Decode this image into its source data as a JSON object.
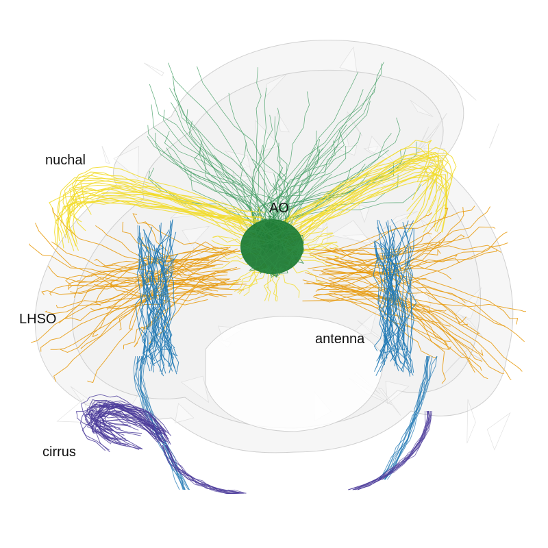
{
  "labels": {
    "nuchal": "nuchal",
    "ao": "AO",
    "lhso": "LHSO",
    "antenna": "antenna",
    "cirrus": "cirrus"
  },
  "colors": {
    "body_outline": "#bdbdbd",
    "body_fill": "#eeeeee",
    "ao_neuropil": "#1e7a34",
    "ao_fibers": "#3a9a5c",
    "nuchal_nerves": "#f2dc2a",
    "lhso_nerves": "#e79a0c",
    "antenna_nerves": "#1f78b4",
    "cirrus_nerves": "#4b3b9a"
  }
}
